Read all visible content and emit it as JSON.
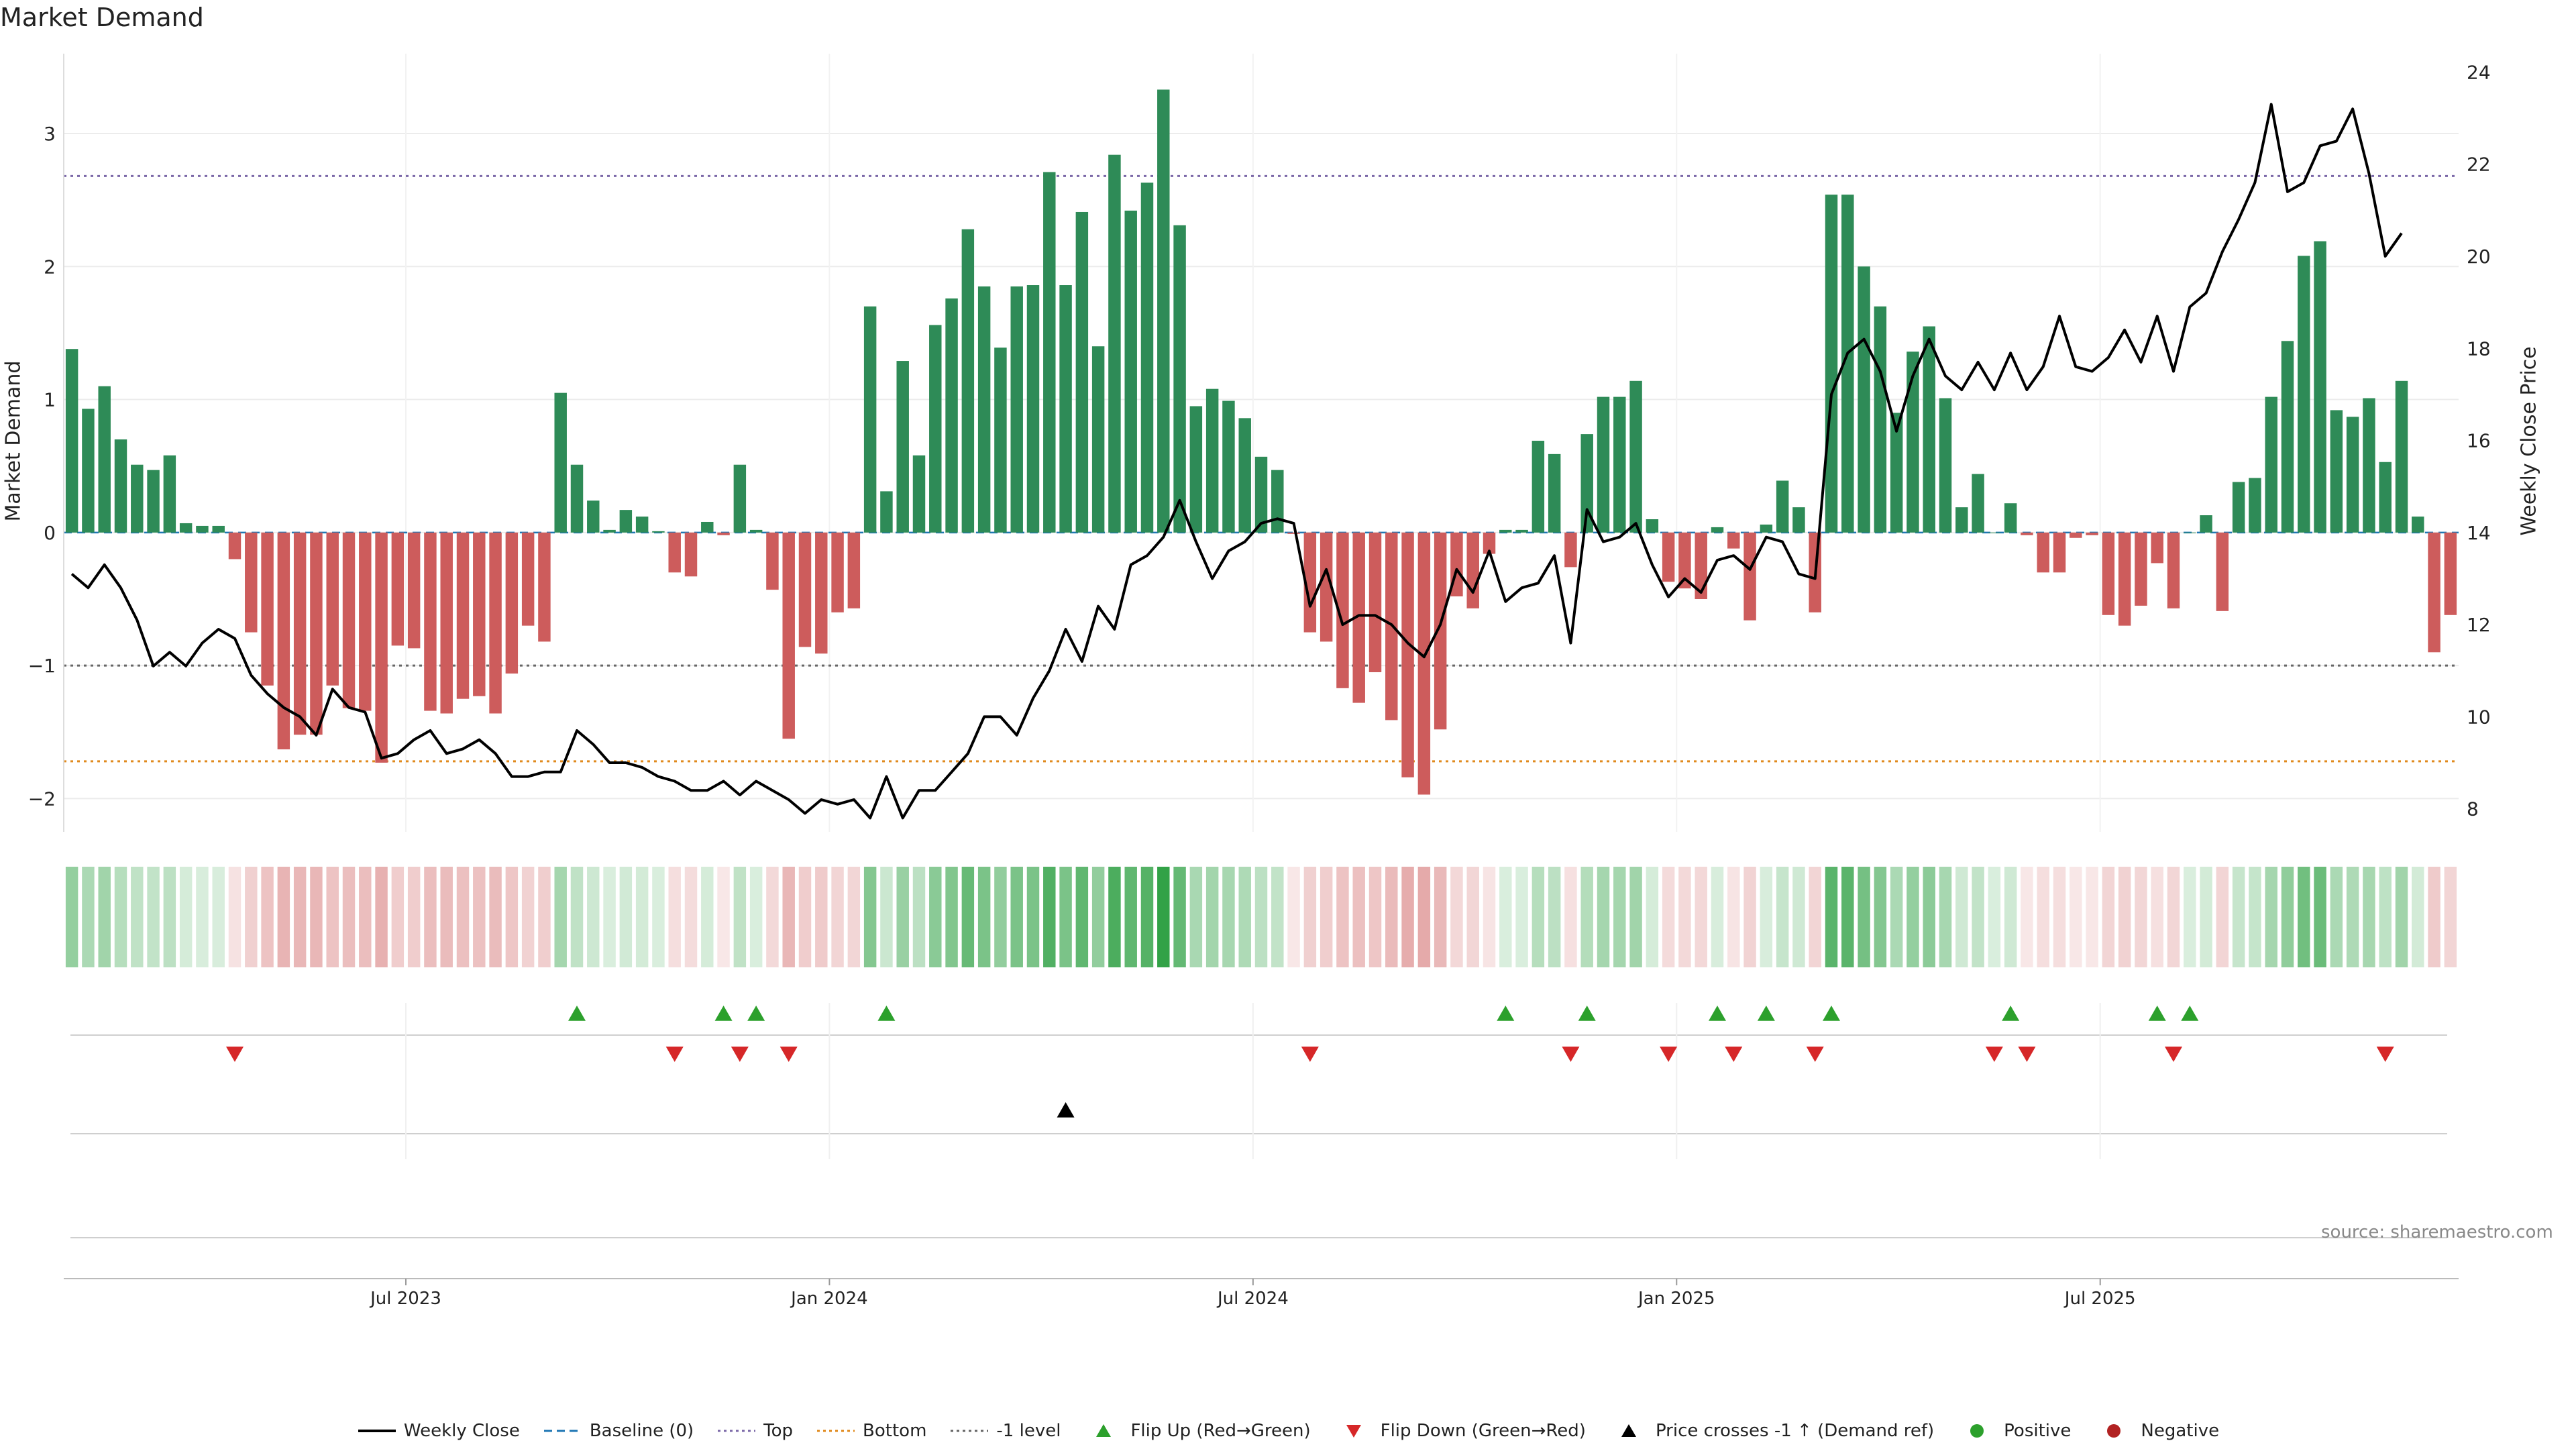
{
  "title": "Market Demand",
  "left_axis_label": "Market Demand",
  "right_axis_label": "Weekly Close Price",
  "source": "source: sharemaestro.com",
  "legend": [
    {
      "label": "Weekly Close",
      "kind": "line-solid",
      "color": "#000000"
    },
    {
      "label": "Baseline (0)",
      "kind": "line-dash",
      "color": "#1f77b4"
    },
    {
      "label": "Top",
      "kind": "line-dot",
      "color": "#7b68a8"
    },
    {
      "label": "Bottom",
      "kind": "line-dot",
      "color": "#e08a1e"
    },
    {
      "label": "-1 level",
      "kind": "line-dot",
      "color": "#666666"
    },
    {
      "label": "Flip Up (Red→Green)",
      "kind": "tri-up",
      "color": "#2ca02c"
    },
    {
      "label": "Flip Down (Green→Red)",
      "kind": "tri-down",
      "color": "#d62728"
    },
    {
      "label": "Price crosses -1 ↑ (Demand ref)",
      "kind": "tri-up",
      "color": "#000000"
    },
    {
      "label": "Positive",
      "kind": "dot",
      "color": "#2ca02c"
    },
    {
      "label": "Negative",
      "kind": "dot",
      "color": "#b22222"
    }
  ],
  "chart_data": {
    "type": "bar",
    "x_start": "2023-01-06",
    "x_step_days": 7,
    "x_ticks": [
      "Jul 2023",
      "Jan 2024",
      "Jul 2024",
      "Jan 2025",
      "Jul 2025"
    ],
    "x_tick_weeks": [
      21,
      47,
      73,
      99,
      125
    ],
    "y_left_ticks": [
      3,
      2,
      1,
      0,
      -1,
      -2
    ],
    "y_left_range": [
      -2.25,
      3.6
    ],
    "y_right_ticks": [
      24,
      22,
      20,
      18,
      16,
      14,
      12,
      10,
      8
    ],
    "y_right_range": [
      7.5,
      24.4
    ],
    "reference_lines": {
      "baseline": 0,
      "top": 2.68,
      "bottom": -1.72,
      "minus_one": -1.0
    },
    "series": [
      {
        "name": "Market Demand",
        "values": [
          1.38,
          0.93,
          1.1,
          0.7,
          0.51,
          0.47,
          0.58,
          0.07,
          0.05,
          0.05,
          -0.2,
          -0.75,
          -1.15,
          -1.63,
          -1.52,
          -1.52,
          -1.15,
          -1.32,
          -1.34,
          -1.73,
          -0.85,
          -0.87,
          -1.34,
          -1.36,
          -1.25,
          -1.23,
          -1.36,
          -1.06,
          -0.7,
          -0.82,
          1.05,
          0.51,
          0.24,
          0.02,
          0.17,
          0.12,
          0.01,
          -0.3,
          -0.33,
          0.08,
          -0.02,
          0.51,
          0.02,
          -0.43,
          -1.55,
          -0.86,
          -0.91,
          -0.6,
          -0.57,
          1.7,
          0.31,
          1.29,
          0.58,
          1.56,
          1.76,
          2.28,
          1.85,
          1.39,
          1.85,
          1.86,
          2.71,
          1.86,
          2.41,
          1.4,
          2.84,
          2.42,
          2.63,
          3.33,
          2.31,
          0.95,
          1.08,
          0.99,
          0.86,
          0.57,
          0.47,
          -0.01,
          -0.75,
          -0.82,
          -1.17,
          -1.28,
          -1.05,
          -1.41,
          -1.84,
          -1.97,
          -1.48,
          -0.48,
          -0.57,
          -0.16,
          0.02,
          0.02,
          0.69,
          0.59,
          -0.26,
          0.74,
          1.02,
          1.02,
          1.14,
          0.1,
          -0.37,
          -0.42,
          -0.5,
          0.04,
          -0.12,
          -0.66,
          0.06,
          0.39,
          0.19,
          -0.6,
          2.54,
          2.54,
          2.0,
          1.7,
          0.9,
          1.36,
          1.55,
          1.01,
          0.19,
          0.44,
          0.0,
          0.22,
          -0.02,
          -0.3,
          -0.3,
          -0.04,
          -0.02,
          -0.62,
          -0.7,
          -0.55,
          -0.23,
          -0.57,
          0.0,
          0.13,
          -0.59,
          0.38,
          0.41,
          1.02,
          1.44,
          2.08,
          2.19,
          0.92,
          0.87,
          1.01,
          0.53,
          1.14,
          0.12,
          -0.9,
          -0.62
        ]
      },
      {
        "name": "Weekly Close",
        "values": [
          13.1,
          12.8,
          13.3,
          12.8,
          12.1,
          11.1,
          11.4,
          11.1,
          11.6,
          11.9,
          11.7,
          10.9,
          10.5,
          10.2,
          10.0,
          9.6,
          10.6,
          10.2,
          10.1,
          9.1,
          9.2,
          9.5,
          9.7,
          9.2,
          9.3,
          9.5,
          9.2,
          8.7,
          8.7,
          8.8,
          8.8,
          9.7,
          9.4,
          9.0,
          9.0,
          8.9,
          8.7,
          8.6,
          8.4,
          8.4,
          8.6,
          8.3,
          8.6,
          8.4,
          8.2,
          7.9,
          8.2,
          8.1,
          8.2,
          7.8,
          8.7,
          7.8,
          8.4,
          8.4,
          8.8,
          9.2,
          10.0,
          10.0,
          9.6,
          10.4,
          11.0,
          11.9,
          11.2,
          12.4,
          11.9,
          13.3,
          13.5,
          13.9,
          14.7,
          13.8,
          13.0,
          13.6,
          13.8,
          14.2,
          14.3,
          14.2,
          12.4,
          13.2,
          12.0,
          12.2,
          12.2,
          12.0,
          11.6,
          11.3,
          12.0,
          13.2,
          12.7,
          13.6,
          12.5,
          12.8,
          12.9,
          13.5,
          11.6,
          14.5,
          13.8,
          13.9,
          14.2,
          13.3,
          12.6,
          13.0,
          12.7,
          13.4,
          13.5,
          13.2,
          13.9,
          13.8,
          13.1,
          13.0,
          17.0,
          17.9,
          18.2,
          17.5,
          16.2,
          17.4,
          18.2,
          17.4,
          17.1,
          17.7,
          17.1,
          17.9,
          17.1,
          17.6,
          18.7,
          17.6,
          17.5,
          17.8,
          18.4,
          17.7,
          18.7,
          17.5,
          18.9,
          19.2,
          20.1,
          20.8,
          21.6,
          23.3,
          21.4,
          21.6,
          22.4,
          22.5,
          23.2,
          21.8,
          20.0,
          20.5
        ]
      }
    ],
    "demand_strip": {
      "type": "heatmap",
      "source_series": "Market Demand"
    },
    "flip_up_weeks": [
      31,
      40,
      42,
      50,
      88,
      93,
      101,
      104,
      108,
      119,
      128,
      130
    ],
    "flip_down_weeks": [
      10,
      37,
      41,
      44,
      76,
      92,
      98,
      102,
      107,
      118,
      120,
      129,
      142
    ],
    "price_cross_weeks": [
      61
    ]
  }
}
